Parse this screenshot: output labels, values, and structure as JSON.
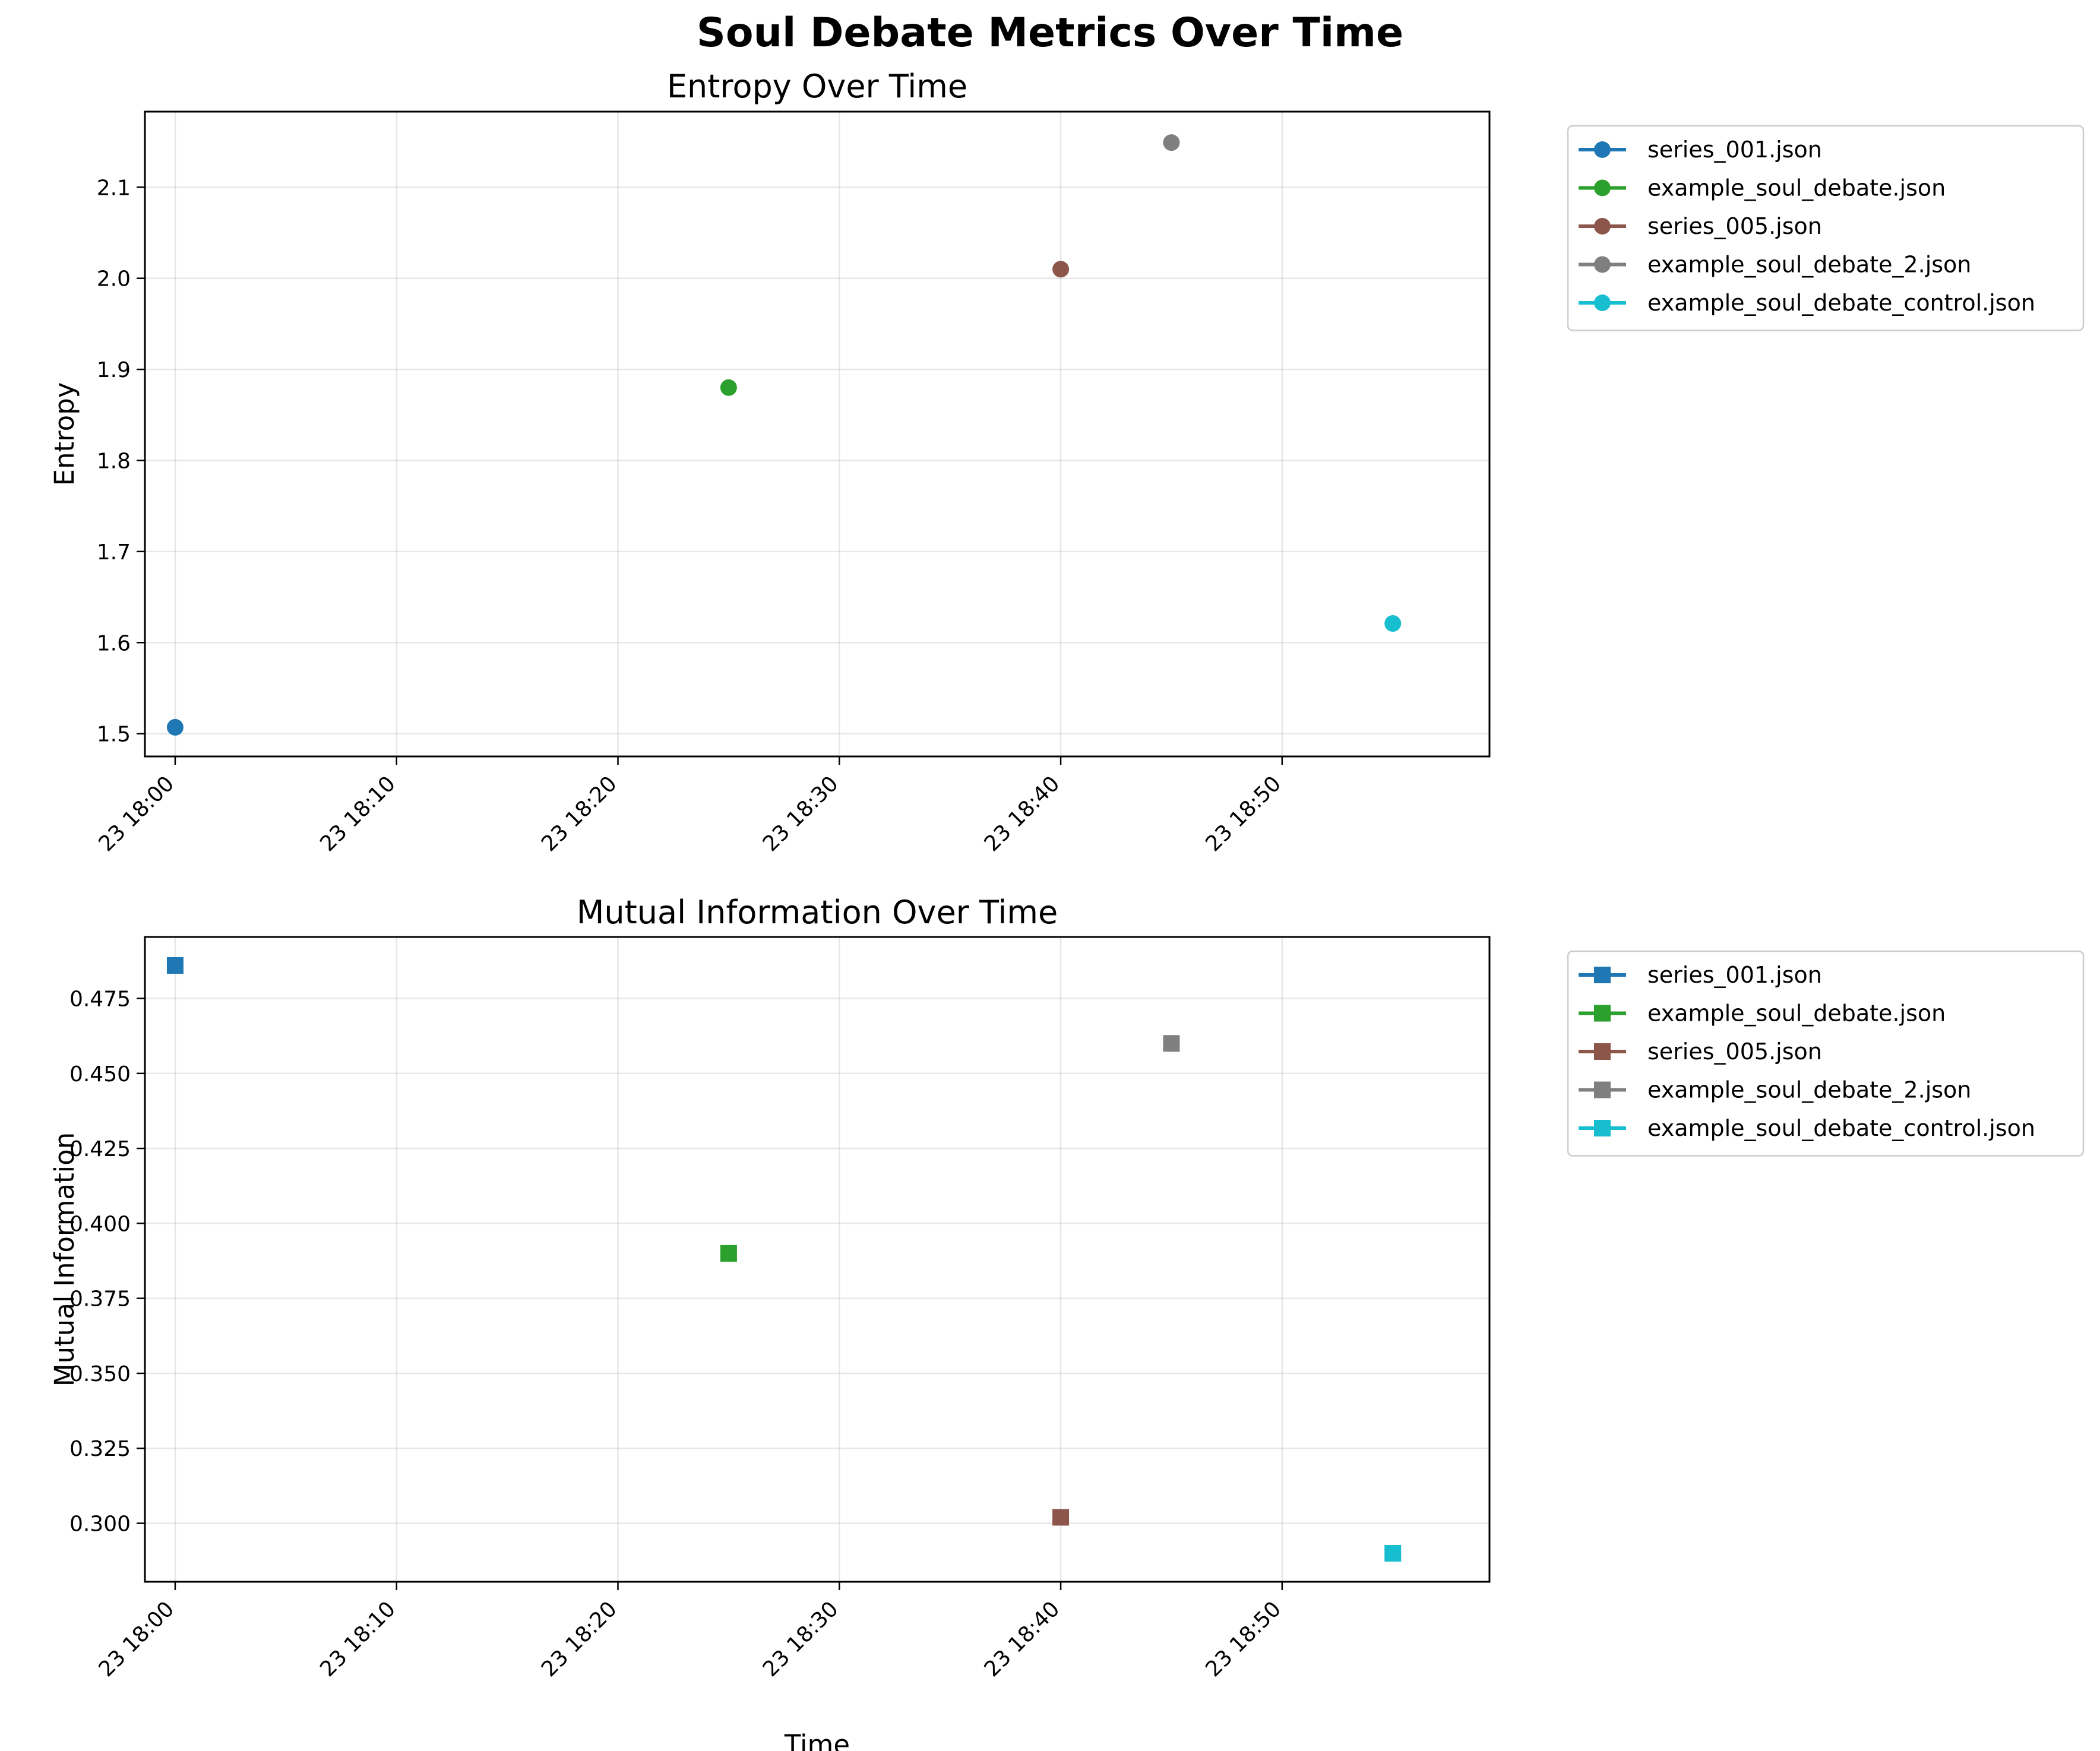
{
  "chart_data": {
    "title": "Soul Debate Metrics Over Time",
    "x_date_label": "23",
    "x_ticks": [
      "18:00",
      "18:10",
      "18:20",
      "18:30",
      "18:40",
      "18:50"
    ],
    "grid": true,
    "legend_placement": "outside-right",
    "series_styles": [
      {
        "name": "series_001.json",
        "color": "#1f77b4"
      },
      {
        "name": "example_soul_debate.json",
        "color": "#2ca02c"
      },
      {
        "name": "series_005.json",
        "color": "#8c564b"
      },
      {
        "name": "example_soul_debate_2.json",
        "color": "#7f7f7f"
      },
      {
        "name": "example_soul_debate_control.json",
        "color": "#17becf"
      }
    ],
    "subplots": [
      {
        "type": "scatter",
        "title": "Entropy Over Time",
        "xlabel": "",
        "ylabel": "Entropy",
        "marker": "circle",
        "xlim": [
          "17:58:38",
          "18:59:22"
        ],
        "ylim": [
          1.475,
          2.183
        ],
        "yticks": [
          "1.5",
          "1.6",
          "1.7",
          "1.8",
          "1.9",
          "2.0",
          "2.1"
        ],
        "series": [
          {
            "name": "series_001.json",
            "x": "18:00",
            "y": 1.507
          },
          {
            "name": "example_soul_debate.json",
            "x": "18:25",
            "y": 1.88
          },
          {
            "name": "series_005.json",
            "x": "18:40",
            "y": 2.01
          },
          {
            "name": "example_soul_debate_2.json",
            "x": "18:45",
            "y": 2.149
          },
          {
            "name": "example_soul_debate_control.json",
            "x": "18:55",
            "y": 1.621
          }
        ]
      },
      {
        "type": "scatter",
        "title": "Mutual Information Over Time",
        "xlabel": "Time",
        "ylabel": "Mutual Information",
        "marker": "square",
        "xlim": [
          "17:58:38",
          "18:59:22"
        ],
        "ylim": [
          0.2805,
          0.4955
        ],
        "yticks": [
          "0.300",
          "0.325",
          "0.350",
          "0.375",
          "0.400",
          "0.425",
          "0.450",
          "0.475"
        ],
        "series": [
          {
            "name": "series_001.json",
            "x": "18:00",
            "y": 0.486
          },
          {
            "name": "example_soul_debate.json",
            "x": "18:25",
            "y": 0.39
          },
          {
            "name": "series_005.json",
            "x": "18:40",
            "y": 0.302
          },
          {
            "name": "example_soul_debate_2.json",
            "x": "18:45",
            "y": 0.46
          },
          {
            "name": "example_soul_debate_control.json",
            "x": "18:55",
            "y": 0.29
          }
        ]
      }
    ]
  }
}
